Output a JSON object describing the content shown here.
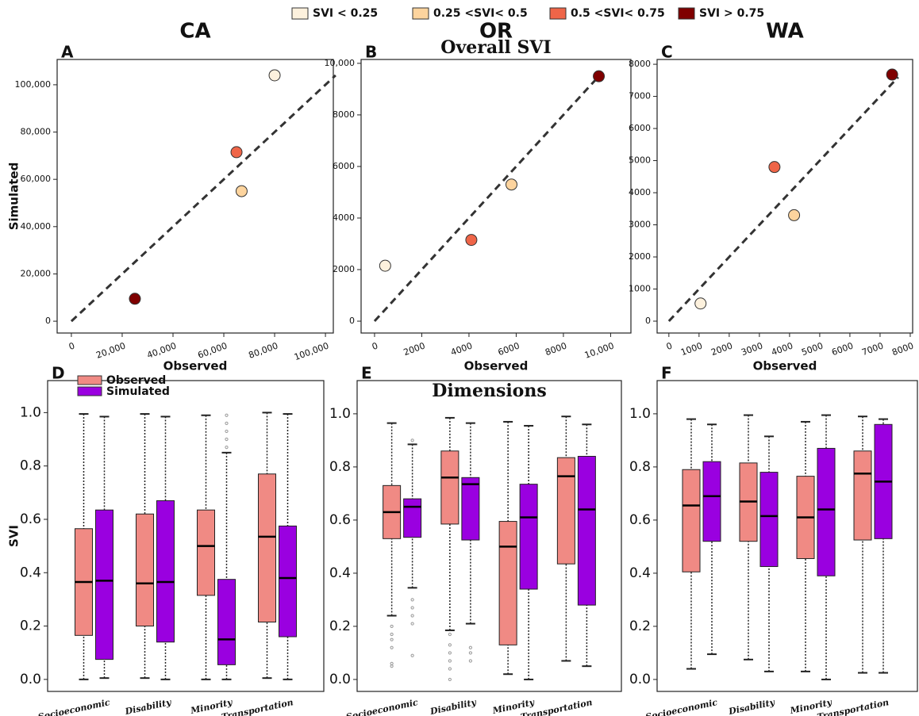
{
  "legend": [
    {
      "name": "SVI < 0.25",
      "color": "#fdf1dd"
    },
    {
      "name": "0.25 <SVI< 0.5",
      "color": "#fdd49e"
    },
    {
      "name": "0.5 <SVI< 0.75",
      "color": "#ef6548"
    },
    {
      "name": "SVI > 0.75",
      "color": "#7f0000"
    }
  ],
  "box_legend": [
    {
      "name": "Observed",
      "color": "#f08a84"
    },
    {
      "name": "Simulated",
      "color": "#9a00e0"
    }
  ],
  "chart_data": [
    {
      "type": "scatter",
      "panel_label": "A",
      "title": "CA",
      "xlabel": "Observed",
      "ylabel": "Simulated",
      "x": [
        80000,
        67000,
        65000,
        25000
      ],
      "values": [
        104000,
        55000,
        71500,
        9500
      ],
      "colors": [
        "#fdf1dd",
        "#fdd49e",
        "#ef6548",
        "#7f0000"
      ],
      "identity_line": [
        0,
        104000
      ],
      "xlim": [
        -5600,
        103100
      ],
      "ylim": [
        -5000,
        110700
      ],
      "xticks": [
        0,
        {
          "value": 20000,
          "label": "20,000"
        },
        {
          "value": 40000,
          "label": "40,000"
        },
        {
          "value": 60000,
          "label": "60,000"
        },
        {
          "value": 80000,
          "label": "80,000"
        },
        {
          "value": 100000,
          "label": "100,000"
        }
      ],
      "yticks": [
        0,
        {
          "value": 20000,
          "label": "20,000"
        },
        {
          "value": 40000,
          "label": "40,000"
        },
        {
          "value": 60000,
          "label": "60,000"
        },
        {
          "value": 80000,
          "label": "80,000"
        },
        {
          "value": 100000,
          "label": "100,000"
        }
      ]
    },
    {
      "type": "scatter",
      "panel_label": "B",
      "title": "OR",
      "subtitle": "Overall SVI",
      "xlabel": "Observed",
      "x": [
        450,
        5800,
        4100,
        9500
      ],
      "values": [
        2150,
        5300,
        3150,
        9500
      ],
      "colors": [
        "#fdf1dd",
        "#fdd49e",
        "#ef6548",
        "#7f0000"
      ],
      "identity_line": [
        0,
        9500
      ],
      "xlim": [
        -570,
        10860
      ],
      "ylim": [
        -460,
        10150
      ],
      "xticks": [
        0,
        2000,
        4000,
        6000,
        8000,
        {
          "value": 10000,
          "label": "10,000"
        }
      ],
      "yticks": [
        0,
        2000,
        4000,
        6000,
        8000,
        {
          "value": 10000,
          "label": "10,000"
        }
      ]
    },
    {
      "type": "scatter",
      "panel_label": "C",
      "title": "WA",
      "xlabel": "Observed",
      "x": [
        1050,
        4150,
        3500,
        7400
      ],
      "values": [
        550,
        3300,
        4800,
        7680
      ],
      "colors": [
        "#fdf1dd",
        "#fdd49e",
        "#ef6548",
        "#7f0000"
      ],
      "identity_line": [
        0,
        7600
      ],
      "xlim": [
        -390,
        8080
      ],
      "ylim": [
        -370,
        8150
      ],
      "xticks": [
        0,
        1000,
        2000,
        3000,
        4000,
        5000,
        6000,
        7000,
        8000
      ],
      "yticks": [
        0,
        1000,
        2000,
        3000,
        4000,
        5000,
        6000,
        7000,
        8000
      ]
    },
    {
      "type": "box",
      "panel_label": "D",
      "ylabel": "SVI",
      "categories": [
        "Socioeconomic",
        "Disability",
        "Minority",
        "Transportation"
      ],
      "ylim": [
        -0.045,
        1.12
      ],
      "yticks": [
        {
          "value": 0,
          "label": "0.0"
        },
        0.2,
        0.4,
        0.6,
        0.8,
        {
          "value": 1,
          "label": "1.0"
        }
      ],
      "series": [
        {
          "boxes": [
            {
              "whislo": 0,
              "q1": 0.165,
              "med": 0.365,
              "q3": 0.565,
              "whishi": 0.995,
              "fliers": []
            },
            {
              "whislo": 0.005,
              "q1": 0.2,
              "med": 0.36,
              "q3": 0.62,
              "whishi": 0.995,
              "fliers": []
            },
            {
              "whislo": 0,
              "q1": 0.315,
              "med": 0.5,
              "q3": 0.635,
              "whishi": 0.99,
              "fliers": []
            },
            {
              "whislo": 0.005,
              "q1": 0.215,
              "med": 0.535,
              "q3": 0.77,
              "whishi": 1,
              "fliers": []
            }
          ]
        },
        {
          "boxes": [
            {
              "whislo": 0.005,
              "q1": 0.075,
              "med": 0.37,
              "q3": 0.635,
              "whishi": 0.985,
              "fliers": []
            },
            {
              "whislo": 0,
              "q1": 0.14,
              "med": 0.365,
              "q3": 0.67,
              "whishi": 0.985,
              "fliers": []
            },
            {
              "whislo": 0,
              "q1": 0.055,
              "med": 0.15,
              "q3": 0.375,
              "whishi": 0.85,
              "fliers": [
                0.87,
                0.9,
                0.93,
                0.96,
                0.99
              ]
            },
            {
              "whislo": 0,
              "q1": 0.16,
              "med": 0.38,
              "q3": 0.575,
              "whishi": 0.995,
              "fliers": []
            }
          ]
        }
      ]
    },
    {
      "type": "box",
      "panel_label": "E",
      "title": "Dimensions",
      "categories": [
        "Socioeconomic",
        "Disability",
        "Minority",
        "Transportation"
      ],
      "ylim": [
        -0.045,
        1.125
      ],
      "yticks": [
        {
          "value": 0,
          "label": "0.0"
        },
        0.2,
        0.4,
        0.6,
        0.8,
        {
          "value": 1,
          "label": "1.0"
        }
      ],
      "series": [
        {
          "boxes": [
            {
              "whislo": 0.24,
              "q1": 0.53,
              "med": 0.63,
              "q3": 0.73,
              "whishi": 0.965,
              "fliers": [
                0.05,
                0.06,
                0.12,
                0.15,
                0.17,
                0.2
              ]
            },
            {
              "whislo": 0.185,
              "q1": 0.585,
              "med": 0.76,
              "q3": 0.86,
              "whishi": 0.985,
              "fliers": [
                0,
                0.04,
                0.07,
                0.1,
                0.13,
                0.17
              ]
            },
            {
              "whislo": 0.02,
              "q1": 0.13,
              "med": 0.5,
              "q3": 0.595,
              "whishi": 0.97,
              "fliers": []
            },
            {
              "whislo": 0.07,
              "q1": 0.435,
              "med": 0.765,
              "q3": 0.835,
              "whishi": 0.99,
              "fliers": []
            }
          ]
        },
        {
          "boxes": [
            {
              "whislo": 0.345,
              "q1": 0.535,
              "med": 0.65,
              "q3": 0.68,
              "whishi": 0.885,
              "fliers": [
                0.09,
                0.21,
                0.24,
                0.27,
                0.3,
                0.9
              ]
            },
            {
              "whislo": 0.21,
              "q1": 0.525,
              "med": 0.735,
              "q3": 0.76,
              "whishi": 0.965,
              "fliers": [
                0.07,
                0.1,
                0.12
              ]
            },
            {
              "whislo": 0,
              "q1": 0.34,
              "med": 0.61,
              "q3": 0.735,
              "whishi": 0.955,
              "fliers": []
            },
            {
              "whislo": 0.05,
              "q1": 0.28,
              "med": 0.64,
              "q3": 0.84,
              "whishi": 0.96,
              "fliers": []
            }
          ]
        }
      ]
    },
    {
      "type": "box",
      "panel_label": "F",
      "categories": [
        "Socioeconomic",
        "Disability",
        "Minority",
        "Transportation"
      ],
      "ylim": [
        -0.045,
        1.125
      ],
      "yticks": [
        {
          "value": 0,
          "label": "0.0"
        },
        0.2,
        0.4,
        0.6,
        0.8,
        {
          "value": 1,
          "label": "1.0"
        }
      ],
      "series": [
        {
          "boxes": [
            {
              "whislo": 0.04,
              "q1": 0.405,
              "med": 0.655,
              "q3": 0.79,
              "whishi": 0.98,
              "fliers": []
            },
            {
              "whislo": 0.075,
              "q1": 0.52,
              "med": 0.67,
              "q3": 0.815,
              "whishi": 0.995,
              "fliers": []
            },
            {
              "whislo": 0.03,
              "q1": 0.455,
              "med": 0.61,
              "q3": 0.765,
              "whishi": 0.97,
              "fliers": []
            },
            {
              "whislo": 0.025,
              "q1": 0.525,
              "med": 0.775,
              "q3": 0.86,
              "whishi": 0.99,
              "fliers": []
            }
          ]
        },
        {
          "boxes": [
            {
              "whislo": 0.095,
              "q1": 0.52,
              "med": 0.69,
              "q3": 0.82,
              "whishi": 0.96,
              "fliers": []
            },
            {
              "whislo": 0.03,
              "q1": 0.425,
              "med": 0.615,
              "q3": 0.78,
              "whishi": 0.915,
              "fliers": []
            },
            {
              "whislo": 0,
              "q1": 0.39,
              "med": 0.64,
              "q3": 0.87,
              "whishi": 0.995,
              "fliers": []
            },
            {
              "whislo": 0.025,
              "q1": 0.53,
              "med": 0.745,
              "q3": 0.96,
              "whishi": 0.98,
              "fliers": []
            }
          ]
        }
      ]
    }
  ]
}
